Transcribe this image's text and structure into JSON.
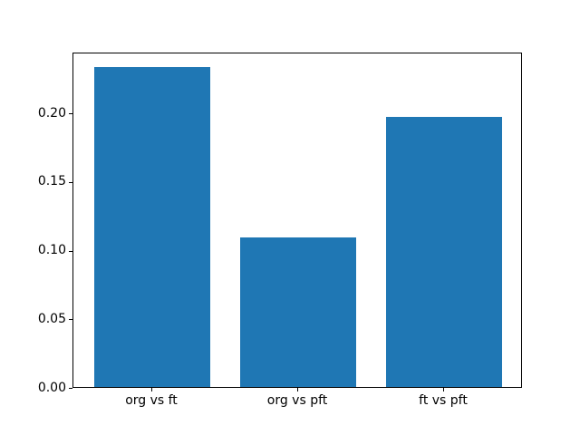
{
  "figure": {
    "background_color": "#ffffff",
    "spine_color": "#000000",
    "tick_color": "#000000",
    "label_color": "#000000"
  },
  "chart_data": {
    "type": "bar",
    "title": "",
    "xlabel": "",
    "ylabel": "",
    "categories": [
      "org vs ft",
      "org vs pft",
      "ft vs pft"
    ],
    "values": [
      0.233,
      0.109,
      0.197
    ],
    "bar_color": "#1f77b4",
    "bar_width": 0.8,
    "xlim": [
      -0.54,
      2.54
    ],
    "ylim": [
      0,
      0.2443
    ],
    "yticks": [
      0.0,
      0.05,
      0.1,
      0.15,
      0.2
    ],
    "ytick_labels": [
      "0.00",
      "0.05",
      "0.10",
      "0.15",
      "0.20"
    ],
    "grid": false,
    "legend": false
  }
}
